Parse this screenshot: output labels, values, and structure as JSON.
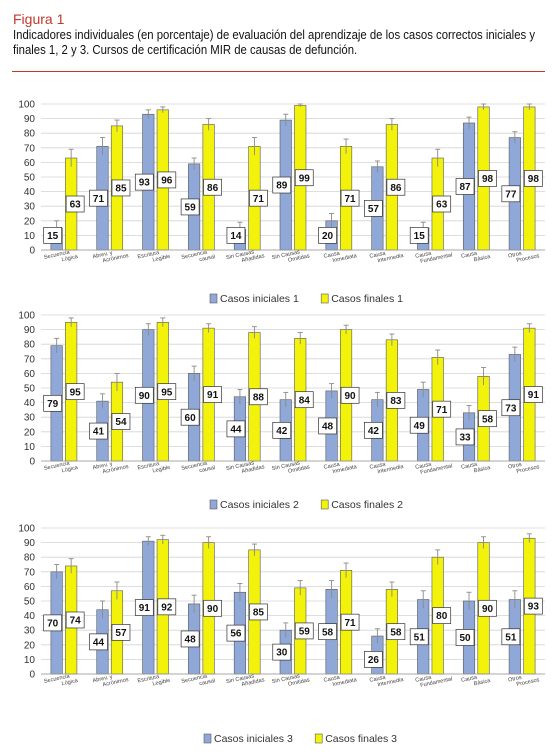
{
  "figure": {
    "label": "Figura 1",
    "title": "Indicadores individuales (en porcentaje) de evaluación del aprendizaje de los casos correctos iniciales y finales 1, 2 y 3. Cursos de certificación MIR de causas de defunción."
  },
  "colors": {
    "initial": "#8fa8d8",
    "final": "#f2f20a",
    "bar_stroke": "#5a5a5a",
    "error": "#8a8a8a",
    "grid": "#d4d4d4"
  },
  "chart_data": [
    {
      "type": "bar",
      "categories": [
        [
          "Secuencia",
          "Lógica"
        ],
        [
          "Abrev. y",
          "Acrónimos"
        ],
        [
          "Escritura",
          "Legible"
        ],
        [
          "Secuencia",
          "causal"
        ],
        [
          "Sin Causas",
          "Añadidas"
        ],
        [
          "Sin Causas",
          "Omitidas"
        ],
        [
          "Causa",
          "Inmediata"
        ],
        [
          "Causa",
          "Intermedia"
        ],
        [
          "Causa",
          "Fundamental"
        ],
        [
          "Causa",
          "Básica"
        ],
        [
          "Otros",
          "Procesos"
        ]
      ],
      "series": [
        {
          "name": "Casos iniciales 1",
          "values": [
            15,
            71,
            93,
            59,
            14,
            89,
            20,
            57,
            15,
            87,
            77
          ],
          "errors": [
            5,
            6,
            3,
            4,
            5,
            4,
            5,
            4,
            4,
            4,
            4
          ]
        },
        {
          "name": "Casos finales 1",
          "values": [
            63,
            85,
            96,
            86,
            71,
            99,
            71,
            86,
            63,
            98,
            98
          ],
          "errors": [
            6,
            4,
            2,
            4,
            6,
            1,
            5,
            4,
            6,
            2,
            2
          ]
        }
      ],
      "ylim": [
        0,
        100
      ],
      "yticks": [
        0,
        10,
        20,
        30,
        40,
        50,
        60,
        70,
        80,
        90,
        100
      ],
      "grid": true,
      "legend": "bottom"
    },
    {
      "type": "bar",
      "categories": [
        [
          "Secuencia",
          "Lógica"
        ],
        [
          "Abrev. y",
          "Acrónimos"
        ],
        [
          "Escritura",
          "Legible"
        ],
        [
          "Secuencia",
          "causal"
        ],
        [
          "Sin Causas",
          "Añadidas"
        ],
        [
          "Sin Causas",
          "Omitidas"
        ],
        [
          "Causa",
          "Inmediata"
        ],
        [
          "Causa",
          "Intermedia"
        ],
        [
          "Causa",
          "Fundamental"
        ],
        [
          "Causa",
          "Básica"
        ],
        [
          "Otros",
          "Procesos"
        ]
      ],
      "series": [
        {
          "name": "Casos iniciales 2",
          "values": [
            79,
            41,
            90,
            60,
            44,
            42,
            48,
            42,
            49,
            33,
            73
          ],
          "errors": [
            5,
            5,
            4,
            5,
            5,
            5,
            5,
            5,
            5,
            5,
            5
          ]
        },
        {
          "name": "Casos finales 2",
          "values": [
            95,
            54,
            95,
            91,
            88,
            84,
            90,
            83,
            71,
            58,
            91
          ],
          "errors": [
            3,
            6,
            3,
            3,
            4,
            4,
            3,
            4,
            5,
            6,
            3
          ]
        }
      ],
      "ylim": [
        0,
        100
      ],
      "yticks": [
        0,
        10,
        20,
        30,
        40,
        50,
        60,
        70,
        80,
        90,
        100
      ],
      "grid": true,
      "legend": "bottom"
    },
    {
      "type": "bar",
      "categories": [
        [
          "Secuencia",
          "Lógica"
        ],
        [
          "Abrev. y",
          "Acrónimos"
        ],
        [
          "Escritura",
          "Legible"
        ],
        [
          "Secuencia",
          "causal"
        ],
        [
          "Sin Causas",
          "Añadidas"
        ],
        [
          "Sin Causas",
          "Omitidas"
        ],
        [
          "Causa",
          "Inmediata"
        ],
        [
          "Causa",
          "Intermedia"
        ],
        [
          "Causa",
          "Fundamental"
        ],
        [
          "Causa",
          "Básica"
        ],
        [
          "Otros",
          "Procesos"
        ]
      ],
      "series": [
        {
          "name": "Casos iniciales 3",
          "values": [
            70,
            44,
            91,
            48,
            56,
            30,
            58,
            26,
            51,
            50,
            51
          ],
          "errors": [
            5,
            6,
            3,
            6,
            6,
            5,
            6,
            5,
            6,
            6,
            6
          ]
        },
        {
          "name": "Casos finales 3",
          "values": [
            74,
            57,
            92,
            90,
            85,
            59,
            71,
            58,
            80,
            90,
            93
          ],
          "errors": [
            5,
            6,
            3,
            4,
            4,
            5,
            5,
            5,
            5,
            4,
            3
          ]
        }
      ],
      "ylim": [
        0,
        100
      ],
      "yticks": [
        0,
        10,
        20,
        30,
        40,
        50,
        60,
        70,
        80,
        90,
        100
      ],
      "grid": true,
      "legend": "bottom"
    }
  ]
}
